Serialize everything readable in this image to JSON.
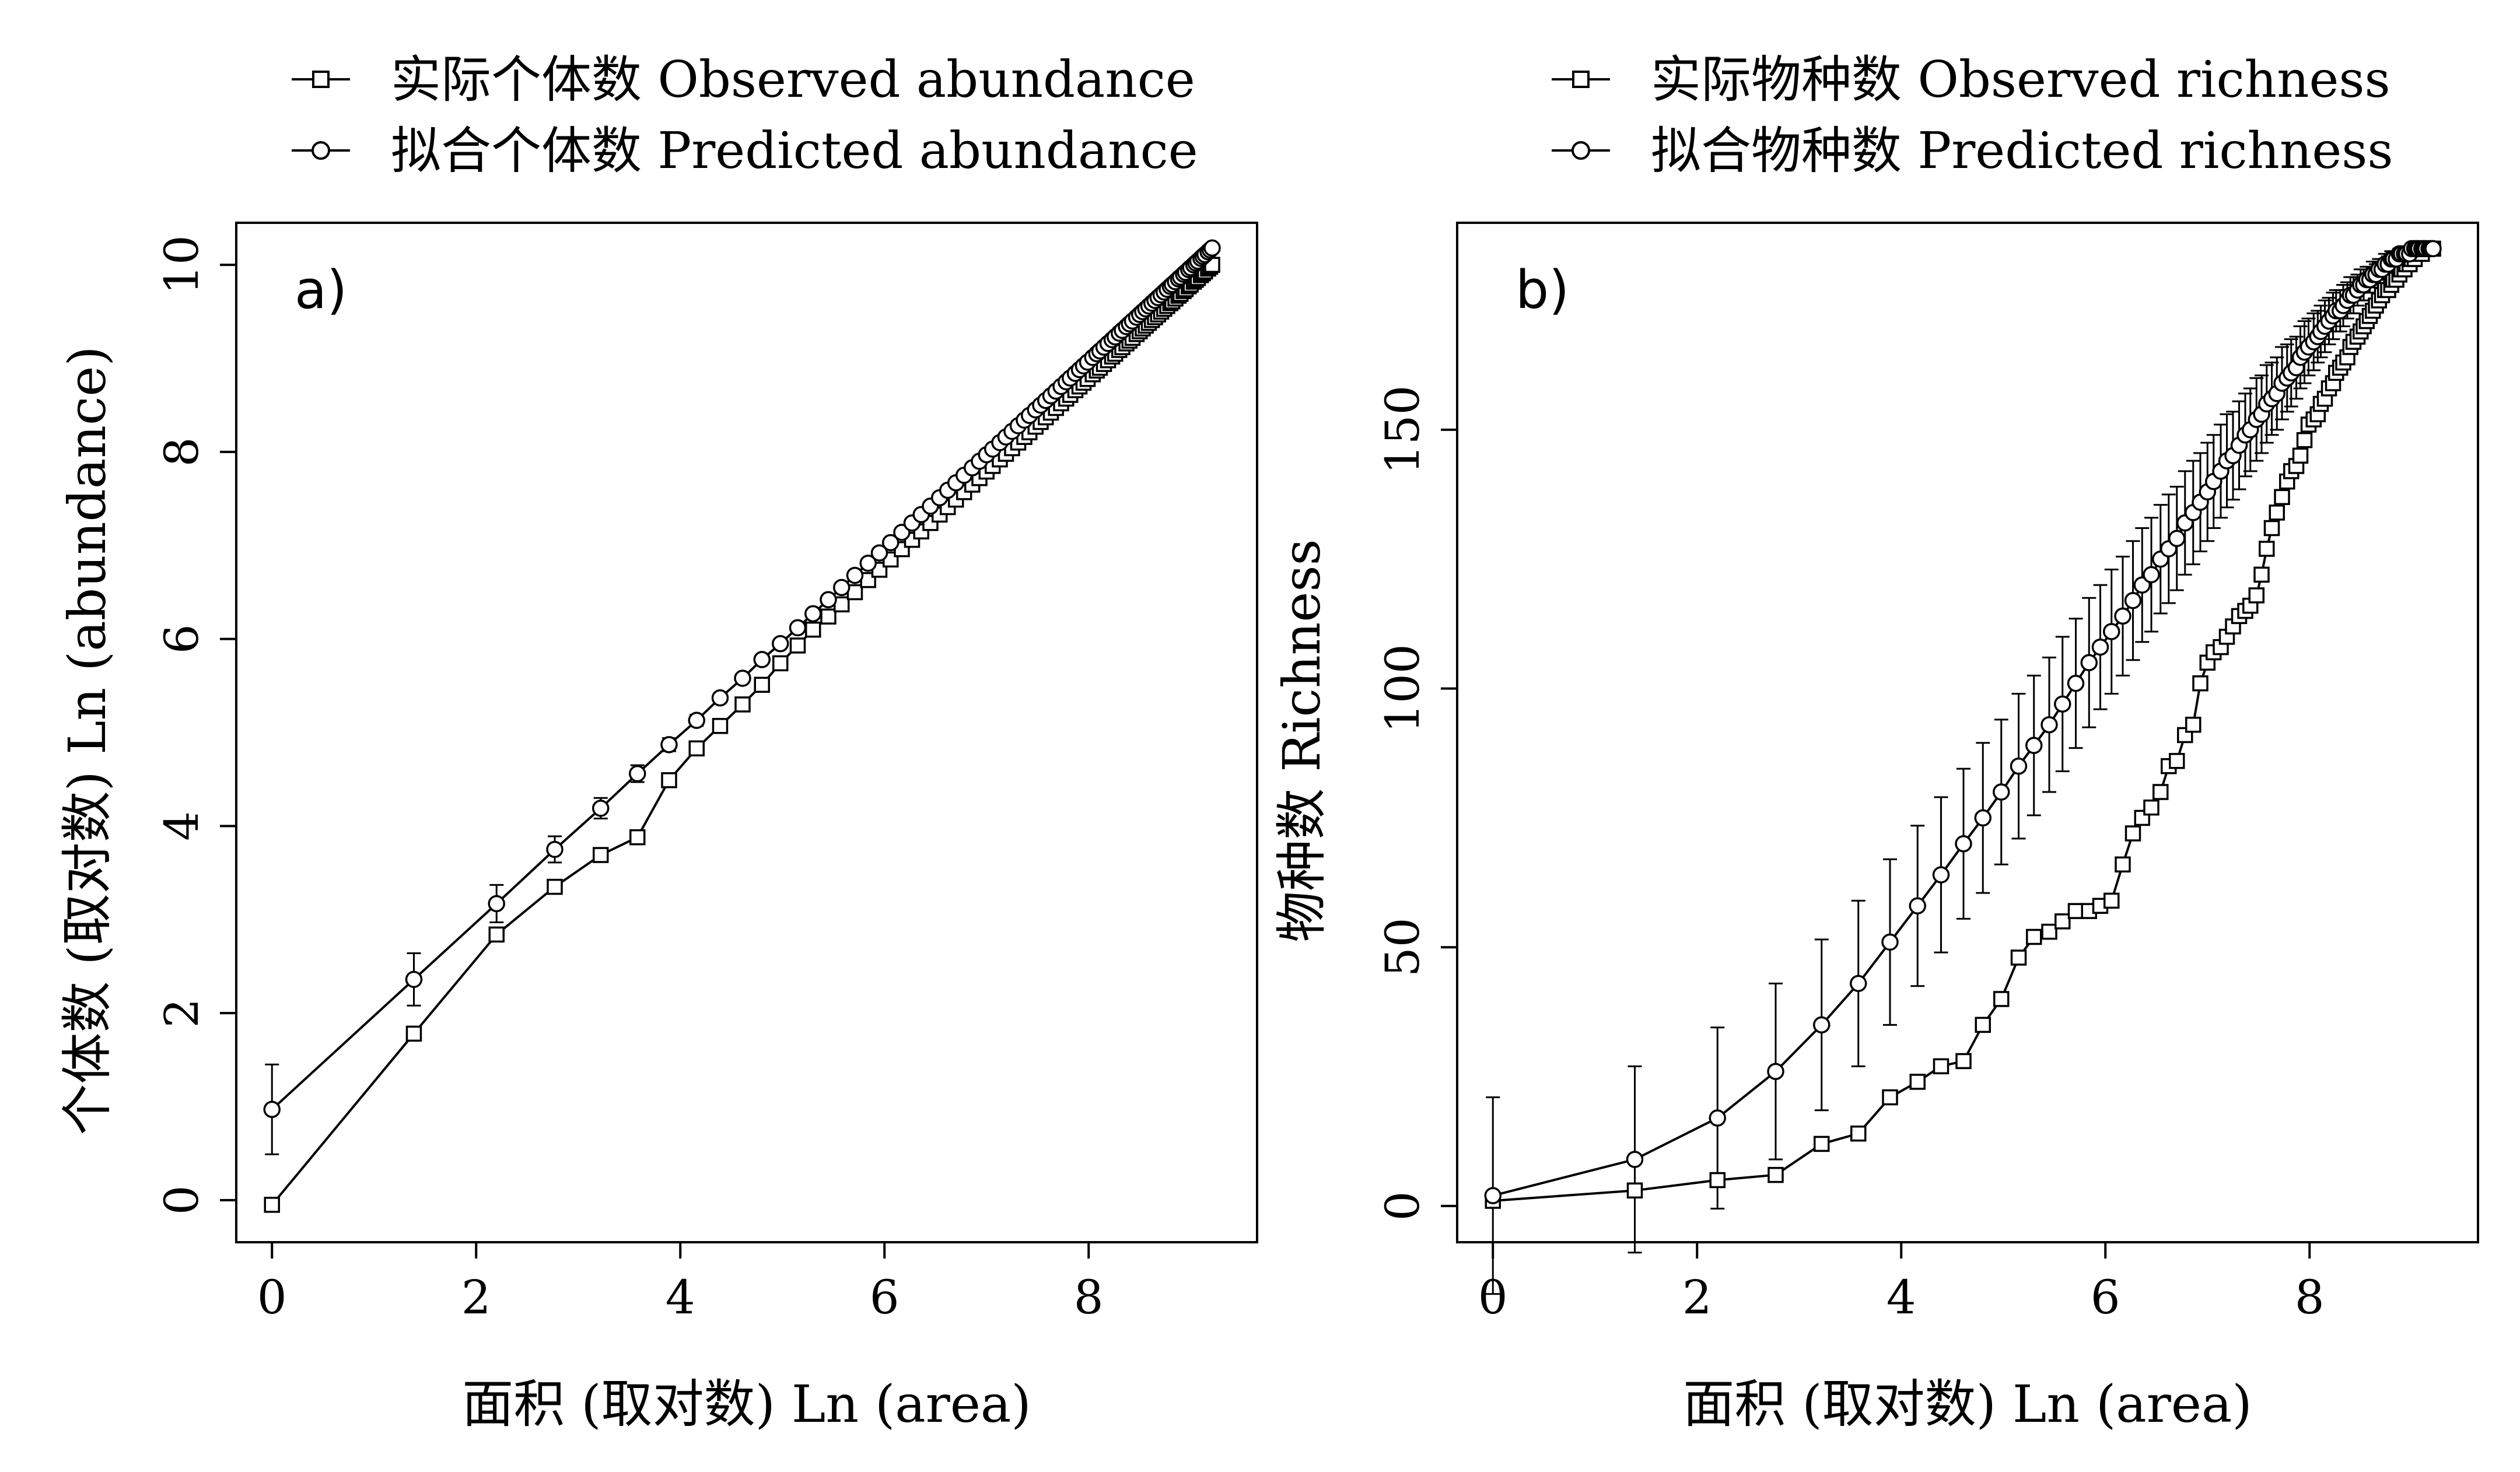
{
  "chart_data": [
    {
      "type": "line",
      "panel_label": "a)",
      "legend": [
        "实际个体数 Observed abundance",
        "拟合个体数 Predicted abundance"
      ],
      "legend_position": "top",
      "xlabel": "面积 (取对数) Ln (area)",
      "ylabel": "个体数 (取对数) Ln (abundance)",
      "xlim": [
        -0.35,
        9.65
      ],
      "ylim": [
        -0.45,
        10.45
      ],
      "xticks": [
        0,
        2,
        4,
        6,
        8
      ],
      "yticks": [
        0,
        2,
        4,
        6,
        8,
        10
      ],
      "series": [
        {
          "name": "实际个体数 Observed abundance",
          "marker": "square",
          "x": [
            0,
            1.39,
            2.2,
            2.77,
            3.22,
            3.58,
            3.89,
            4.16,
            4.39,
            4.61,
            4.8,
            4.98,
            5.15,
            5.3,
            5.45,
            5.58,
            5.71,
            5.84,
            5.95,
            6.06,
            6.17,
            6.27,
            6.36,
            6.45,
            6.54,
            6.62,
            6.7,
            6.78,
            6.86,
            6.93,
            7.0,
            7.06,
            7.13,
            7.19,
            7.25,
            7.31,
            7.37,
            7.42,
            7.48,
            7.53,
            7.58,
            7.63,
            7.68,
            7.73,
            7.78,
            7.82,
            7.87,
            7.91,
            7.95,
            7.99,
            8.04,
            8.08,
            8.11,
            8.15,
            8.19,
            8.23,
            8.26,
            8.3,
            8.33,
            8.37,
            8.4,
            8.43,
            8.47,
            8.5,
            8.53,
            8.56,
            8.59,
            8.62,
            8.65,
            8.68,
            8.71,
            8.74,
            8.77,
            8.8,
            8.82,
            8.85,
            8.88,
            8.9,
            8.93,
            8.95,
            8.98,
            9.0,
            9.03,
            9.05,
            9.07,
            9.1,
            9.12,
            9.14,
            9.17,
            9.19,
            9.21
          ],
          "y": [
            -0.05,
            1.78,
            2.84,
            3.35,
            3.69,
            3.88,
            4.49,
            4.83,
            5.07,
            5.3,
            5.51,
            5.74,
            5.93,
            6.1,
            6.24,
            6.37,
            6.5,
            6.63,
            6.74,
            6.85,
            6.96,
            7.06,
            7.15,
            7.24,
            7.33,
            7.41,
            7.49,
            7.57,
            7.65,
            7.72,
            7.79,
            7.85,
            7.92,
            7.98,
            8.04,
            8.1,
            8.16,
            8.21,
            8.27,
            8.32,
            8.37,
            8.42,
            8.47,
            8.52,
            8.57,
            8.61,
            8.66,
            8.7,
            8.74,
            8.78,
            8.83,
            8.87,
            8.9,
            8.94,
            8.98,
            9.02,
            9.05,
            9.09,
            9.12,
            9.16,
            9.19,
            9.22,
            9.26,
            9.29,
            9.32,
            9.35,
            9.38,
            9.41,
            9.44,
            9.47,
            9.5,
            9.53,
            9.56,
            9.59,
            9.61,
            9.64,
            9.67,
            9.69,
            9.72,
            9.74,
            9.77,
            9.79,
            9.82,
            9.84,
            9.86,
            9.89,
            9.91,
            9.93,
            9.96,
            9.98,
            10.0
          ]
        },
        {
          "name": "拟合个体数 Predicted abundance",
          "marker": "circle",
          "x": [
            0,
            1.39,
            2.2,
            2.77,
            3.22,
            3.58,
            3.89,
            4.16,
            4.39,
            4.61,
            4.8,
            4.98,
            5.15,
            5.3,
            5.45,
            5.58,
            5.71,
            5.84,
            5.95,
            6.06,
            6.17,
            6.27,
            6.36,
            6.45,
            6.54,
            6.62,
            6.7,
            6.78,
            6.86,
            6.93,
            7.0,
            7.06,
            7.13,
            7.19,
            7.25,
            7.31,
            7.37,
            7.42,
            7.48,
            7.53,
            7.58,
            7.63,
            7.68,
            7.73,
            7.78,
            7.82,
            7.87,
            7.91,
            7.95,
            7.99,
            8.04,
            8.08,
            8.11,
            8.15,
            8.19,
            8.23,
            8.26,
            8.3,
            8.33,
            8.37,
            8.4,
            8.43,
            8.47,
            8.5,
            8.53,
            8.56,
            8.59,
            8.62,
            8.65,
            8.68,
            8.71,
            8.74,
            8.77,
            8.8,
            8.82,
            8.85,
            8.88,
            8.9,
            8.93,
            8.95,
            8.98,
            9.0,
            9.03,
            9.05,
            9.07,
            9.1,
            9.12,
            9.14,
            9.17,
            9.19,
            9.21
          ],
          "y": [
            0.97,
            2.36,
            3.17,
            3.75,
            4.19,
            4.56,
            4.87,
            5.13,
            5.37,
            5.58,
            5.78,
            5.95,
            6.12,
            6.27,
            6.42,
            6.55,
            6.68,
            6.81,
            6.92,
            7.03,
            7.14,
            7.24,
            7.33,
            7.42,
            7.51,
            7.59,
            7.67,
            7.75,
            7.83,
            7.9,
            7.97,
            8.03,
            8.1,
            8.16,
            8.22,
            8.28,
            8.34,
            8.39,
            8.45,
            8.5,
            8.55,
            8.6,
            8.65,
            8.7,
            8.75,
            8.79,
            8.84,
            8.88,
            8.92,
            8.96,
            9.01,
            9.05,
            9.08,
            9.12,
            9.16,
            9.2,
            9.23,
            9.27,
            9.3,
            9.34,
            9.37,
            9.4,
            9.44,
            9.47,
            9.5,
            9.53,
            9.56,
            9.59,
            9.62,
            9.65,
            9.68,
            9.71,
            9.74,
            9.77,
            9.79,
            9.82,
            9.85,
            9.87,
            9.9,
            9.92,
            9.95,
            9.97,
            10.0,
            10.02,
            10.04,
            10.07,
            10.09,
            10.11,
            10.14,
            10.16,
            10.18
          ],
          "error": [
            0.48,
            0.28,
            0.2,
            0.14,
            0.11,
            0.09,
            0.07,
            0.06,
            0.05,
            0.04,
            0.04,
            0.03,
            0.03,
            0.03,
            0.02,
            0.02,
            0.02,
            0.02,
            0.02,
            0.02,
            0.02,
            0.01,
            0.01,
            0.01,
            0.01,
            0.01,
            0.01,
            0.01,
            0.01,
            0.01,
            0.01,
            0.01,
            0.01,
            0.01,
            0.01,
            0.01,
            0.01,
            0.01,
            0.01,
            0.01,
            0.01,
            0.01,
            0.01,
            0.01,
            0.01,
            0.01,
            0.01,
            0.01,
            0.01,
            0.01,
            0.01,
            0.01,
            0.01,
            0.01,
            0.01,
            0.01,
            0.01,
            0.01,
            0.01,
            0.01,
            0.01,
            0.01,
            0.01,
            0.01,
            0.01,
            0.01,
            0.01,
            0.01,
            0.01,
            0.01,
            0.01,
            0.01,
            0.01,
            0.01,
            0.01,
            0.01,
            0.01,
            0.01,
            0.01,
            0.01,
            0.01,
            0.01,
            0.01,
            0.01,
            0.01,
            0.01,
            0.01,
            0.01,
            0.01,
            0.01,
            0.01
          ]
        }
      ]
    },
    {
      "type": "line",
      "panel_label": "b)",
      "legend": [
        "实际物种数 Observed richness",
        "拟合物种数 Predicted richness"
      ],
      "legend_position": "top",
      "xlabel": "面积 (取对数) Ln (area)",
      "ylabel": "物种数 Richness",
      "xlim": [
        -0.35,
        9.65
      ],
      "ylim": [
        -7,
        190
      ],
      "xticks": [
        0,
        2,
        4,
        6,
        8
      ],
      "yticks": [
        0,
        50,
        100,
        150
      ],
      "series": [
        {
          "name": "实际物种数 Observed richness",
          "marker": "square",
          "x": [
            0,
            1.39,
            2.2,
            2.77,
            3.22,
            3.58,
            3.89,
            4.16,
            4.39,
            4.61,
            4.8,
            4.98,
            5.15,
            5.3,
            5.45,
            5.58,
            5.71,
            5.84,
            5.95,
            6.06,
            6.17,
            6.27,
            6.36,
            6.45,
            6.54,
            6.62,
            6.7,
            6.78,
            6.86,
            6.93,
            7.0,
            7.06,
            7.13,
            7.19,
            7.25,
            7.31,
            7.37,
            7.42,
            7.48,
            7.53,
            7.58,
            7.63,
            7.68,
            7.73,
            7.78,
            7.82,
            7.87,
            7.91,
            7.95,
            7.99,
            8.04,
            8.08,
            8.11,
            8.15,
            8.19,
            8.23,
            8.26,
            8.3,
            8.33,
            8.37,
            8.4,
            8.43,
            8.47,
            8.5,
            8.53,
            8.56,
            8.59,
            8.62,
            8.65,
            8.68,
            8.71,
            8.74,
            8.77,
            8.8,
            8.82,
            8.85,
            8.88,
            8.9,
            8.93,
            8.95,
            8.98,
            9.0,
            9.03,
            9.05,
            9.07,
            9.1,
            9.12,
            9.14,
            9.17,
            9.19,
            9.21
          ],
          "y": [
            1,
            3,
            5,
            6,
            12,
            14,
            21,
            24,
            27,
            28,
            35,
            40,
            48,
            52,
            53,
            55,
            57,
            57,
            58,
            59,
            66,
            72,
            75,
            77,
            80,
            85,
            86,
            91,
            93,
            101,
            105,
            107,
            108,
            110,
            112,
            114,
            115,
            116,
            118,
            122,
            127,
            131,
            134,
            137,
            140,
            142,
            143,
            145,
            148,
            151,
            152,
            153,
            155,
            156,
            158,
            159,
            161,
            162,
            163,
            164,
            166,
            167,
            168,
            169,
            170,
            171,
            172,
            173,
            174,
            175,
            176,
            177,
            177,
            178,
            179,
            179,
            180,
            181,
            181,
            182,
            182,
            183,
            183,
            184,
            184,
            184,
            185,
            185,
            185,
            185,
            185
          ]
        },
        {
          "name": "拟合物种数 Predicted richness",
          "marker": "circle",
          "x": [
            0,
            1.39,
            2.2,
            2.77,
            3.22,
            3.58,
            3.89,
            4.16,
            4.39,
            4.61,
            4.8,
            4.98,
            5.15,
            5.3,
            5.45,
            5.58,
            5.71,
            5.84,
            5.95,
            6.06,
            6.17,
            6.27,
            6.36,
            6.45,
            6.54,
            6.62,
            6.7,
            6.78,
            6.86,
            6.93,
            7.0,
            7.06,
            7.13,
            7.19,
            7.25,
            7.31,
            7.37,
            7.42,
            7.48,
            7.53,
            7.58,
            7.63,
            7.68,
            7.73,
            7.78,
            7.82,
            7.87,
            7.91,
            7.95,
            7.99,
            8.04,
            8.08,
            8.11,
            8.15,
            8.19,
            8.23,
            8.26,
            8.3,
            8.33,
            8.37,
            8.4,
            8.43,
            8.47,
            8.5,
            8.53,
            8.56,
            8.59,
            8.62,
            8.65,
            8.68,
            8.71,
            8.74,
            8.77,
            8.8,
            8.82,
            8.85,
            8.88,
            8.9,
            8.93,
            8.95,
            8.98,
            9.0,
            9.03,
            9.05,
            9.07,
            9.1,
            9.12,
            9.14,
            9.17,
            9.19,
            9.21
          ],
          "y": [
            2,
            9,
            17,
            26,
            35,
            43,
            51,
            58,
            64,
            70,
            75,
            80,
            85,
            89,
            93,
            97,
            101,
            105,
            108,
            111,
            114,
            117,
            120,
            122,
            125,
            127,
            129,
            132,
            134,
            136,
            138,
            140,
            142,
            144,
            145,
            147,
            149,
            150,
            152,
            153,
            155,
            156,
            157,
            159,
            160,
            161,
            162,
            164,
            165,
            166,
            167,
            168,
            169,
            170,
            171,
            172,
            173,
            173,
            174,
            175,
            176,
            176,
            177,
            178,
            178,
            179,
            179,
            180,
            180,
            181,
            181,
            182,
            182,
            183,
            183,
            183,
            184,
            184,
            184,
            184,
            184,
            185,
            185,
            185,
            185,
            185,
            185,
            185,
            185,
            185,
            185
          ],
          "error": [
            19,
            18,
            17.5,
            17,
            16.5,
            16,
            16,
            15.5,
            15,
            14.5,
            14.5,
            14,
            14,
            13.5,
            13,
            13,
            12.5,
            12.5,
            12,
            12,
            11.5,
            11.5,
            11,
            11,
            10.5,
            10.5,
            10,
            10,
            10,
            9.5,
            9.5,
            9,
            9,
            9,
            8.5,
            8.5,
            8,
            8,
            8,
            7.5,
            7.5,
            7,
            7,
            7,
            6.5,
            6.5,
            6,
            6,
            6,
            5.5,
            5.5,
            5,
            5,
            5,
            4.5,
            4.5,
            4,
            4,
            4,
            3.5,
            3.5,
            3.5,
            3,
            3,
            3,
            2.5,
            2.5,
            2.5,
            2,
            2,
            2,
            2,
            1.5,
            1.5,
            1.5,
            1.5,
            1,
            1,
            1,
            1,
            1,
            0.5,
            0.5,
            0.5,
            0.5,
            0.5,
            0.5,
            0.5,
            0.5,
            0.5,
            0.5
          ]
        }
      ]
    }
  ]
}
